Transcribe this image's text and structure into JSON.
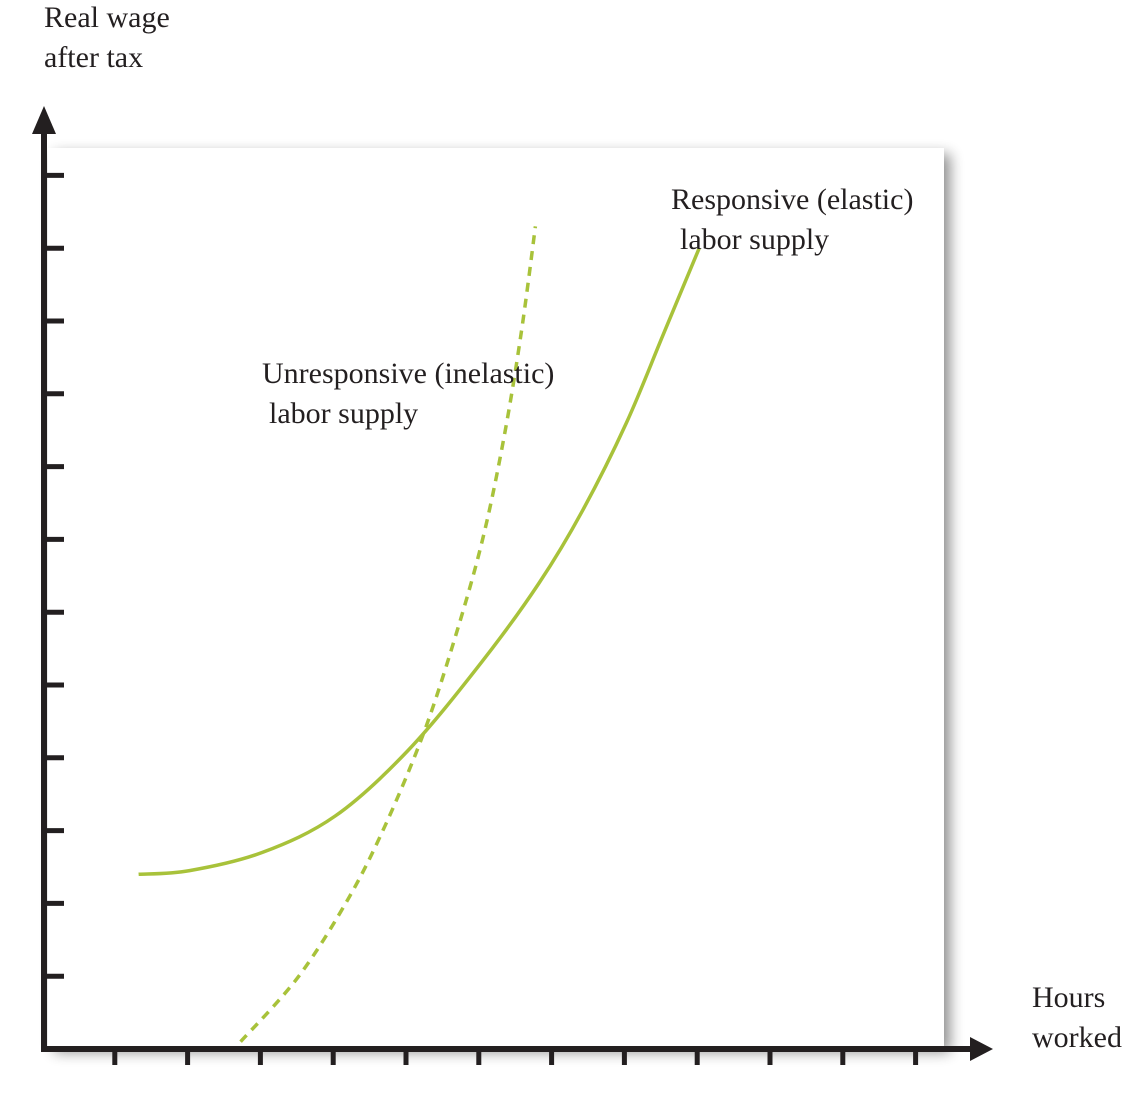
{
  "chart_data": {
    "type": "line",
    "title": "",
    "ylabel_lines": [
      "Real wage",
      "after tax"
    ],
    "xlabel_lines": [
      "Hours",
      "worked"
    ],
    "xlim": [
      0,
      12
    ],
    "ylim": [
      0,
      12
    ],
    "x_ticks": [
      1,
      2,
      3,
      4,
      5,
      6,
      7,
      8,
      9,
      10,
      11,
      12
    ],
    "y_ticks": [
      1,
      2,
      3,
      4,
      5,
      6,
      7,
      8,
      9,
      10,
      11,
      12
    ],
    "grid": false,
    "series": [
      {
        "name_lines": [
          "Responsive (elastic)",
          "labor supply"
        ],
        "style": "solid",
        "color": "#a8c23a",
        "x": [
          1.3,
          2.0,
          3.0,
          4.0,
          5.0,
          6.0,
          6.8,
          7.4,
          8.0,
          8.5,
          9.0
        ],
        "y": [
          2.4,
          2.45,
          2.7,
          3.2,
          4.1,
          5.3,
          6.4,
          7.4,
          8.6,
          9.8,
          11.0
        ]
      },
      {
        "name_lines": [
          "Unresponsive (inelastic)",
          "labor supply"
        ],
        "style": "dashed",
        "color": "#a8c23a",
        "x": [
          2.7,
          3.5,
          4.2,
          4.7,
          5.2,
          5.6,
          6.0,
          6.3,
          6.55,
          6.75
        ],
        "y": [
          0.1,
          1.0,
          2.1,
          3.1,
          4.3,
          5.5,
          6.9,
          8.3,
          9.8,
          11.3
        ]
      }
    ],
    "colors": {
      "axis": "#231f20",
      "plot_background": "#ffffff",
      "curve": "#a8c23a"
    }
  }
}
